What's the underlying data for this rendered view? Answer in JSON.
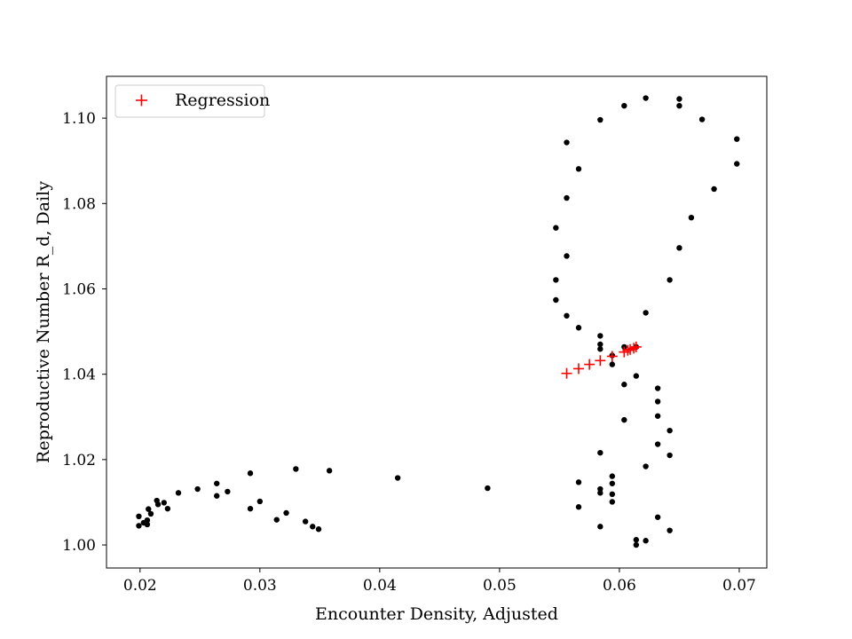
{
  "chart_data": {
    "type": "scatter",
    "title": "",
    "xlabel": "Encounter Density, Adjusted",
    "ylabel": "Reproductive Number R_d, Daily",
    "xlim": [
      0.0172,
      0.0723
    ],
    "ylim": [
      0.9946,
      1.1098
    ],
    "xticks": [
      0.02,
      0.03,
      0.04,
      0.05,
      0.06,
      0.07
    ],
    "xtick_labels": [
      "0.02",
      "0.03",
      "0.04",
      "0.05",
      "0.06",
      "0.07"
    ],
    "yticks": [
      1.0,
      1.02,
      1.04,
      1.06,
      1.08,
      1.1
    ],
    "ytick_labels": [
      "1.00",
      "1.02",
      "1.04",
      "1.06",
      "1.08",
      "1.10"
    ],
    "grid": false,
    "legend": {
      "position": "top-left",
      "entries": [
        "Regression"
      ]
    },
    "series": [
      {
        "marker": "dot",
        "color": "#000000",
        "points": [
          [
            0.0199,
            1.0067
          ],
          [
            0.0199,
            1.0045
          ],
          [
            0.0203,
            1.0052
          ],
          [
            0.0206,
            1.0058
          ],
          [
            0.0206,
            1.0048
          ],
          [
            0.0207,
            1.0084
          ],
          [
            0.0209,
            1.0073
          ],
          [
            0.0214,
            1.0104
          ],
          [
            0.0215,
            1.0095
          ],
          [
            0.022,
            1.0099
          ],
          [
            0.0223,
            1.0085
          ],
          [
            0.0232,
            1.0122
          ],
          [
            0.0248,
            1.0131
          ],
          [
            0.0264,
            1.0144
          ],
          [
            0.0264,
            1.0115
          ],
          [
            0.0273,
            1.0125
          ],
          [
            0.0292,
            1.0168
          ],
          [
            0.0292,
            1.0085
          ],
          [
            0.03,
            1.0102
          ],
          [
            0.0314,
            1.0059
          ],
          [
            0.0322,
            1.0075
          ],
          [
            0.033,
            1.0178
          ],
          [
            0.0338,
            1.0055
          ],
          [
            0.0344,
            1.0043
          ],
          [
            0.0349,
            1.0037
          ],
          [
            0.0358,
            1.0174
          ],
          [
            0.0415,
            1.0157
          ],
          [
            0.049,
            1.0133
          ],
          [
            0.0556,
            1.0943
          ],
          [
            0.0566,
            1.0881
          ],
          [
            0.0556,
            1.0813
          ],
          [
            0.0547,
            1.0743
          ],
          [
            0.0556,
            1.0677
          ],
          [
            0.0547,
            1.0621
          ],
          [
            0.0547,
            1.0574
          ],
          [
            0.0556,
            1.0537
          ],
          [
            0.0566,
            1.0509
          ],
          [
            0.0584,
            1.049
          ],
          [
            0.0584,
            1.047
          ],
          [
            0.0584,
            1.0459
          ],
          [
            0.0594,
            1.0444
          ],
          [
            0.0594,
            1.0423
          ],
          [
            0.0614,
            1.0396
          ],
          [
            0.0604,
            1.0376
          ],
          [
            0.0584,
            1.0996
          ],
          [
            0.0604,
            1.1029
          ],
          [
            0.0622,
            1.1047
          ],
          [
            0.065,
            1.1045
          ],
          [
            0.065,
            1.1029
          ],
          [
            0.0669,
            1.0997
          ],
          [
            0.0698,
            1.0951
          ],
          [
            0.0698,
            1.0893
          ],
          [
            0.0679,
            1.0834
          ],
          [
            0.066,
            1.0767
          ],
          [
            0.065,
            1.0696
          ],
          [
            0.0642,
            1.0621
          ],
          [
            0.0622,
            1.0544
          ],
          [
            0.0604,
            1.0464
          ],
          [
            0.0614,
            1.0464
          ],
          [
            0.0632,
            1.0367
          ],
          [
            0.0632,
            1.0336
          ],
          [
            0.0632,
            1.0302
          ],
          [
            0.0642,
            1.0268
          ],
          [
            0.0632,
            1.0236
          ],
          [
            0.0642,
            1.021
          ],
          [
            0.0622,
            1.0184
          ],
          [
            0.0604,
            1.0293
          ],
          [
            0.0584,
            1.0216
          ],
          [
            0.0594,
            1.0161
          ],
          [
            0.0594,
            1.0144
          ],
          [
            0.0594,
            1.0119
          ],
          [
            0.0594,
            1.0101
          ],
          [
            0.0566,
            1.0147
          ],
          [
            0.0584,
            1.0131
          ],
          [
            0.0584,
            1.0122
          ],
          [
            0.0566,
            1.0089
          ],
          [
            0.0584,
            1.0043
          ],
          [
            0.0632,
            1.0065
          ],
          [
            0.0642,
            1.0034
          ],
          [
            0.0614,
            1.0012
          ],
          [
            0.0622,
            1.001
          ],
          [
            0.0614,
            1.0
          ]
        ]
      },
      {
        "name": "Regression",
        "marker": "plus",
        "color": "#ff0000",
        "points": [
          [
            0.0556,
            1.0402
          ],
          [
            0.0566,
            1.0413
          ],
          [
            0.0575,
            1.0423
          ],
          [
            0.0584,
            1.0432
          ],
          [
            0.0594,
            1.0442
          ],
          [
            0.0604,
            1.0452
          ],
          [
            0.0607,
            1.0456
          ],
          [
            0.0609,
            1.0458
          ],
          [
            0.0612,
            1.0461
          ],
          [
            0.0614,
            1.0464
          ]
        ]
      }
    ]
  }
}
